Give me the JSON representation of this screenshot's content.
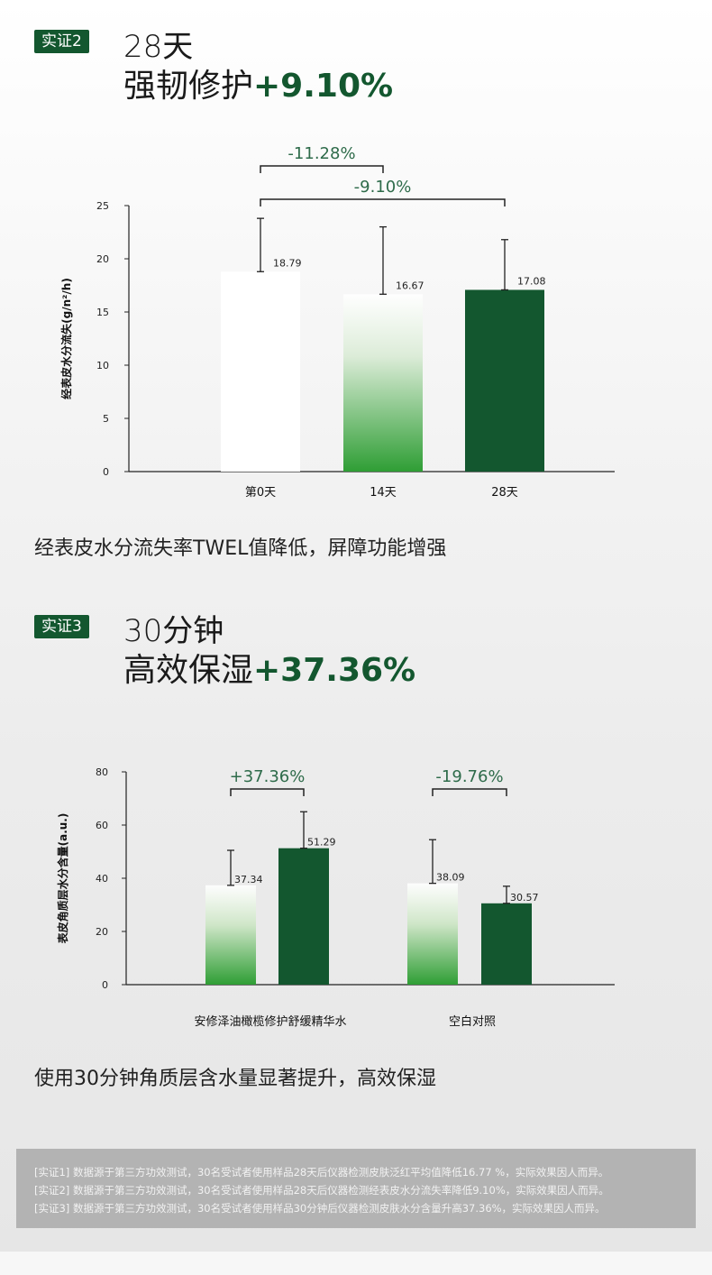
{
  "section1": {
    "badge": "实证2",
    "title_line1": "28天",
    "title_line2_text": "强韧修护",
    "title_line2_pct": "+9.10%",
    "caption": "经表皮水分流失率TWEL值降低，屏障功能增强"
  },
  "section2": {
    "badge": "实证3",
    "title_line1": "30分钟",
    "title_line2_text": "高效保湿",
    "title_line2_pct": "+37.36%",
    "caption": "使用30分钟角质层含水量显著提升，高效保湿"
  },
  "colors": {
    "dark_green": "#13572f",
    "mid_green": "#3aa53a",
    "annotation_green": "#2e6b4a"
  },
  "chart_data": [
    {
      "type": "bar",
      "ylabel": "经表皮水分流失(g/n²/h)",
      "ylim": [
        0,
        25
      ],
      "yticks": [
        "0",
        "5",
        "10",
        "15",
        "20",
        "25"
      ],
      "categories": [
        "第0天",
        "14天",
        "28天"
      ],
      "values": [
        18.79,
        16.67,
        17.08
      ],
      "value_labels": [
        "18.79",
        "16.67",
        "17.08"
      ],
      "error_upper": [
        23.8,
        23.0,
        21.8
      ],
      "styles": [
        "white",
        "gradient",
        "dark"
      ],
      "annotations": [
        {
          "label": "-11.28%",
          "from": 0,
          "to": 1
        },
        {
          "label": "-9.10%",
          "from": 0,
          "to": 2
        }
      ],
      "grid": false
    },
    {
      "type": "bar",
      "ylabel": "表皮角质层水分含量(a.u.)",
      "ylim": [
        0,
        80
      ],
      "yticks": [
        "0",
        "20",
        "40",
        "60",
        "80"
      ],
      "groups": [
        "安修泽油橄榄修护舒缓精华水",
        "空白对照"
      ],
      "values": [
        [
          37.34,
          51.29
        ],
        [
          38.09,
          30.57
        ]
      ],
      "value_labels": [
        [
          "37.34",
          "51.29"
        ],
        [
          "38.09",
          "30.57"
        ]
      ],
      "error_upper": [
        [
          50.5,
          65.0
        ],
        [
          54.5,
          37.0
        ]
      ],
      "styles": [
        "gradient",
        "dark"
      ],
      "annotations": [
        {
          "label": "+37.36%",
          "group": 0
        },
        {
          "label": "-19.76%",
          "group": 1
        }
      ],
      "grid": false
    }
  ],
  "footnotes": [
    "[实证1] 数据源于第三方功效测试，30名受试者使用样品28天后仪器检测皮肤泛红平均值降低16.77 %，实际效果因人而异。",
    "[实证2] 数据源于第三方功效测试，30名受试者使用样品28天后仪器检测经表皮水分流失率降低9.10%，实际效果因人而异。",
    "[实证3] 数据源于第三方功效测试，30名受试者使用样品30分钟后仪器检测皮肤水分含量升高37.36%，实际效果因人而异。"
  ]
}
